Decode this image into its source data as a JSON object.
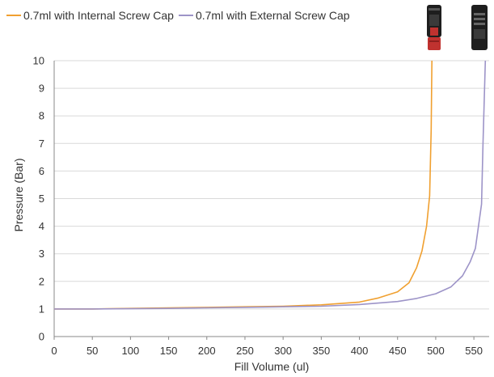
{
  "chart_data": {
    "type": "line",
    "title": "",
    "xlabel": "Fill Volume (ul)",
    "ylabel": "Pressure (Bar)",
    "xlim": [
      0,
      570
    ],
    "ylim": [
      0,
      10
    ],
    "x_ticks": [
      0,
      50,
      100,
      150,
      200,
      250,
      300,
      350,
      400,
      450,
      500,
      550
    ],
    "y_ticks": [
      0,
      1,
      2,
      3,
      4,
      5,
      6,
      7,
      8,
      9,
      10
    ],
    "grid": "horizontal",
    "legend_position": "top-left",
    "series": [
      {
        "name": "0.7ml with Internal Screw Cap",
        "color": "#f0a030",
        "points": [
          [
            0,
            1.0
          ],
          [
            50,
            1.0
          ],
          [
            100,
            1.02
          ],
          [
            150,
            1.04
          ],
          [
            200,
            1.06
          ],
          [
            250,
            1.08
          ],
          [
            300,
            1.1
          ],
          [
            350,
            1.15
          ],
          [
            400,
            1.25
          ],
          [
            425,
            1.4
          ],
          [
            450,
            1.62
          ],
          [
            465,
            1.95
          ],
          [
            475,
            2.5
          ],
          [
            482,
            3.1
          ],
          [
            488,
            4.0
          ],
          [
            492,
            5.1
          ],
          [
            494,
            7.5
          ],
          [
            495,
            10.0
          ]
        ]
      },
      {
        "name": "0.7ml with External Screw Cap",
        "color": "#9d94c8",
        "points": [
          [
            0,
            1.0
          ],
          [
            50,
            1.0
          ],
          [
            100,
            1.01
          ],
          [
            150,
            1.02
          ],
          [
            200,
            1.04
          ],
          [
            250,
            1.06
          ],
          [
            300,
            1.08
          ],
          [
            350,
            1.1
          ],
          [
            400,
            1.16
          ],
          [
            450,
            1.27
          ],
          [
            475,
            1.38
          ],
          [
            500,
            1.55
          ],
          [
            520,
            1.8
          ],
          [
            535,
            2.2
          ],
          [
            545,
            2.7
          ],
          [
            552,
            3.2
          ],
          [
            560,
            4.8
          ],
          [
            562,
            7.0
          ],
          [
            565,
            10.0
          ]
        ]
      }
    ]
  },
  "colors": {
    "axis": "#888888",
    "grid": "#d9d9d9",
    "vial_body": "#1e1e1e",
    "vial_cap_red": "#c0322f"
  }
}
